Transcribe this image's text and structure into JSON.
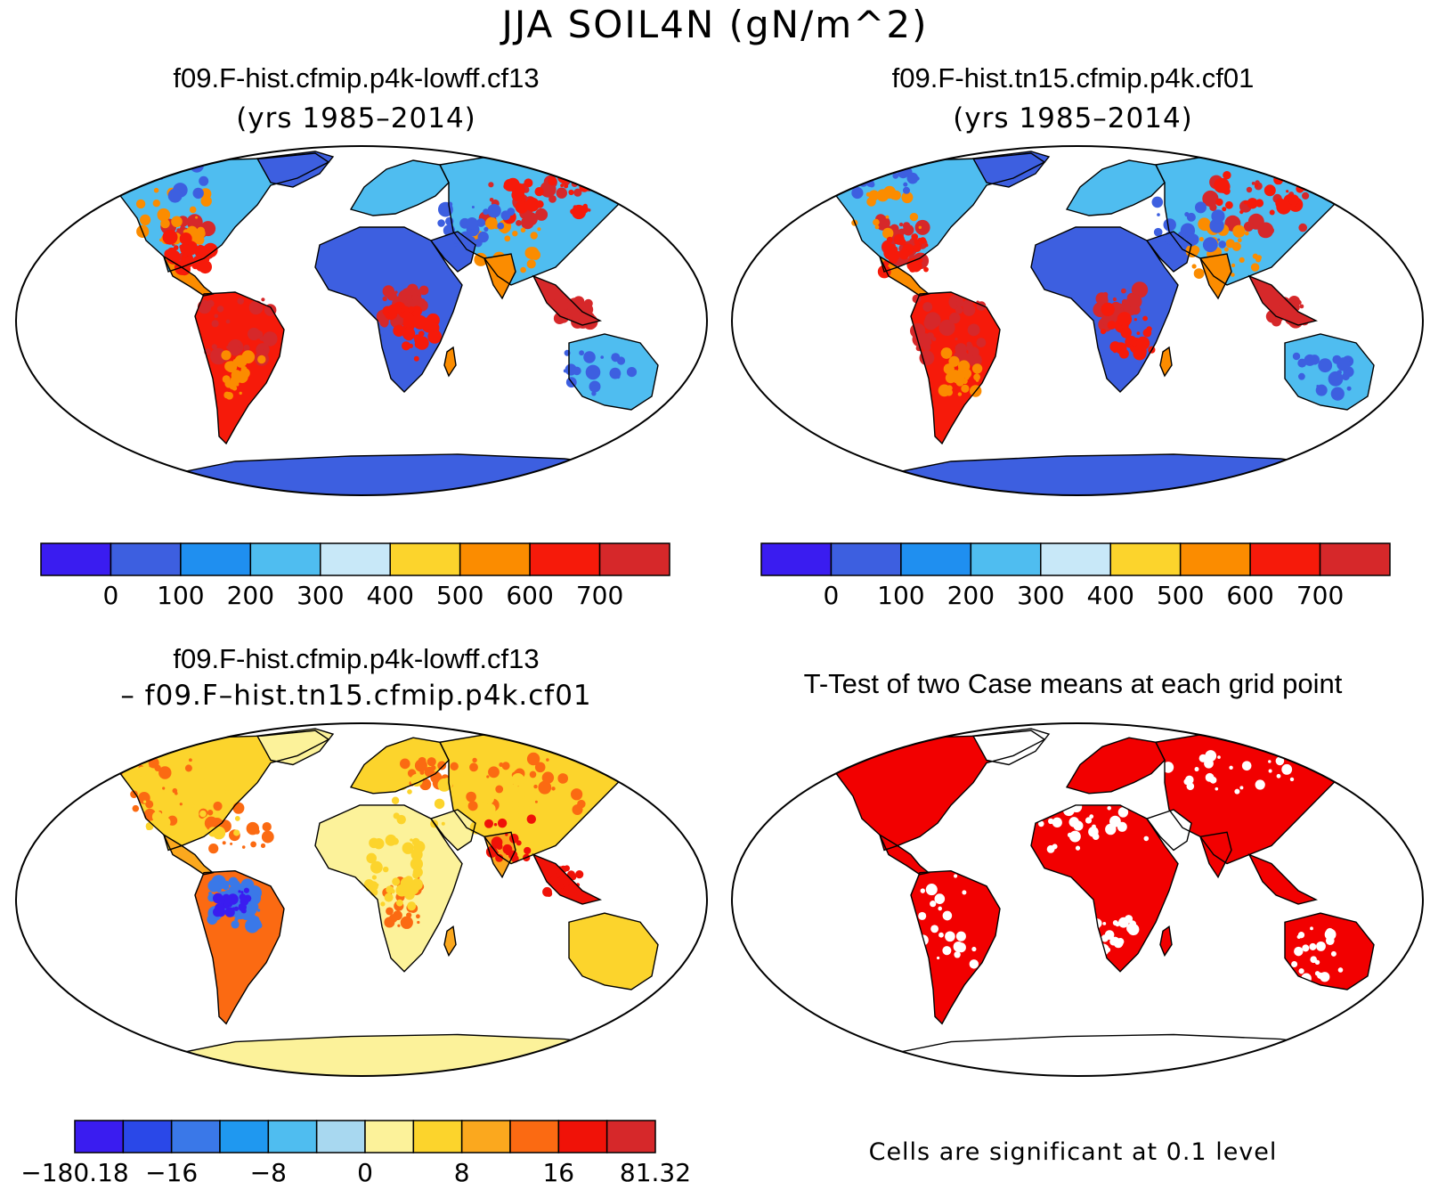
{
  "title": "JJA SOIL4N (gN/m^2)",
  "panels": [
    {
      "id": "case1",
      "title": "f09.F-hist.cfmip.p4k-lowff.cf13",
      "subtitle": "(yrs 1985–2014)",
      "colorbar": {
        "colors": [
          "#3a1cf0",
          "#3d5fe0",
          "#1f8ff0",
          "#4fbdf0",
          "#c8e8f8",
          "#fcd42c",
          "#fb8c00",
          "#f61a0a",
          "#d6282a"
        ],
        "tick_labels": [
          "0",
          "100",
          "200",
          "300",
          "400",
          "500",
          "600",
          "700"
        ]
      },
      "colors": {
        "ocean": "#ffffff",
        "desert": "#3d5fe0",
        "mid": "#4fbdf0",
        "wet": "#f61a0a",
        "hot": "#d6282a",
        "warm": "#fb8c00",
        "ice": "#3d5fe0"
      }
    },
    {
      "id": "case2",
      "title": "f09.F-hist.tn15.cfmip.p4k.cf01",
      "subtitle": "(yrs 1985–2014)",
      "colorbar": {
        "colors": [
          "#3a1cf0",
          "#3d5fe0",
          "#1f8ff0",
          "#4fbdf0",
          "#c8e8f8",
          "#fcd42c",
          "#fb8c00",
          "#f61a0a",
          "#d6282a"
        ],
        "tick_labels": [
          "0",
          "100",
          "200",
          "300",
          "400",
          "500",
          "600",
          "700"
        ]
      },
      "colors": {
        "ocean": "#ffffff",
        "desert": "#3d5fe0",
        "mid": "#4fbdf0",
        "wet": "#f61a0a",
        "hot": "#d6282a",
        "warm": "#fb8c00",
        "ice": "#3d5fe0"
      }
    },
    {
      "id": "diff",
      "title": "f09.F-hist.cfmip.p4k-lowff.cf13",
      "subtitle": "– f09.F–hist.tn15.cfmip.p4k.cf01",
      "colorbar": {
        "colors": [
          "#3a1cf0",
          "#2a48e8",
          "#3a78e8",
          "#1f98f0",
          "#4fbdf0",
          "#a8d8f0",
          "#fcf29a",
          "#fcd42c",
          "#fba81e",
          "#fb6a12",
          "#f01208",
          "#d6282a"
        ],
        "tick_labels": [
          "−180.18",
          "−16",
          "−8",
          "0",
          "8",
          "16",
          "81.32"
        ]
      },
      "colors": {
        "ocean": "#ffffff",
        "desert": "#fcf29a",
        "mid": "#fcd42c",
        "wet": "#fb6a12",
        "hot": "#f01208",
        "warm": "#fba81e",
        "ice": "#fcf29a",
        "neg": "#3a78e8"
      }
    },
    {
      "id": "ttest",
      "title": "T-Test of two Case means at each grid point",
      "note": "Cells are significant at 0.1 level",
      "colors": {
        "ocean": "#ffffff",
        "sig": "#f20000",
        "nonsig": "#ffffff"
      }
    }
  ]
}
